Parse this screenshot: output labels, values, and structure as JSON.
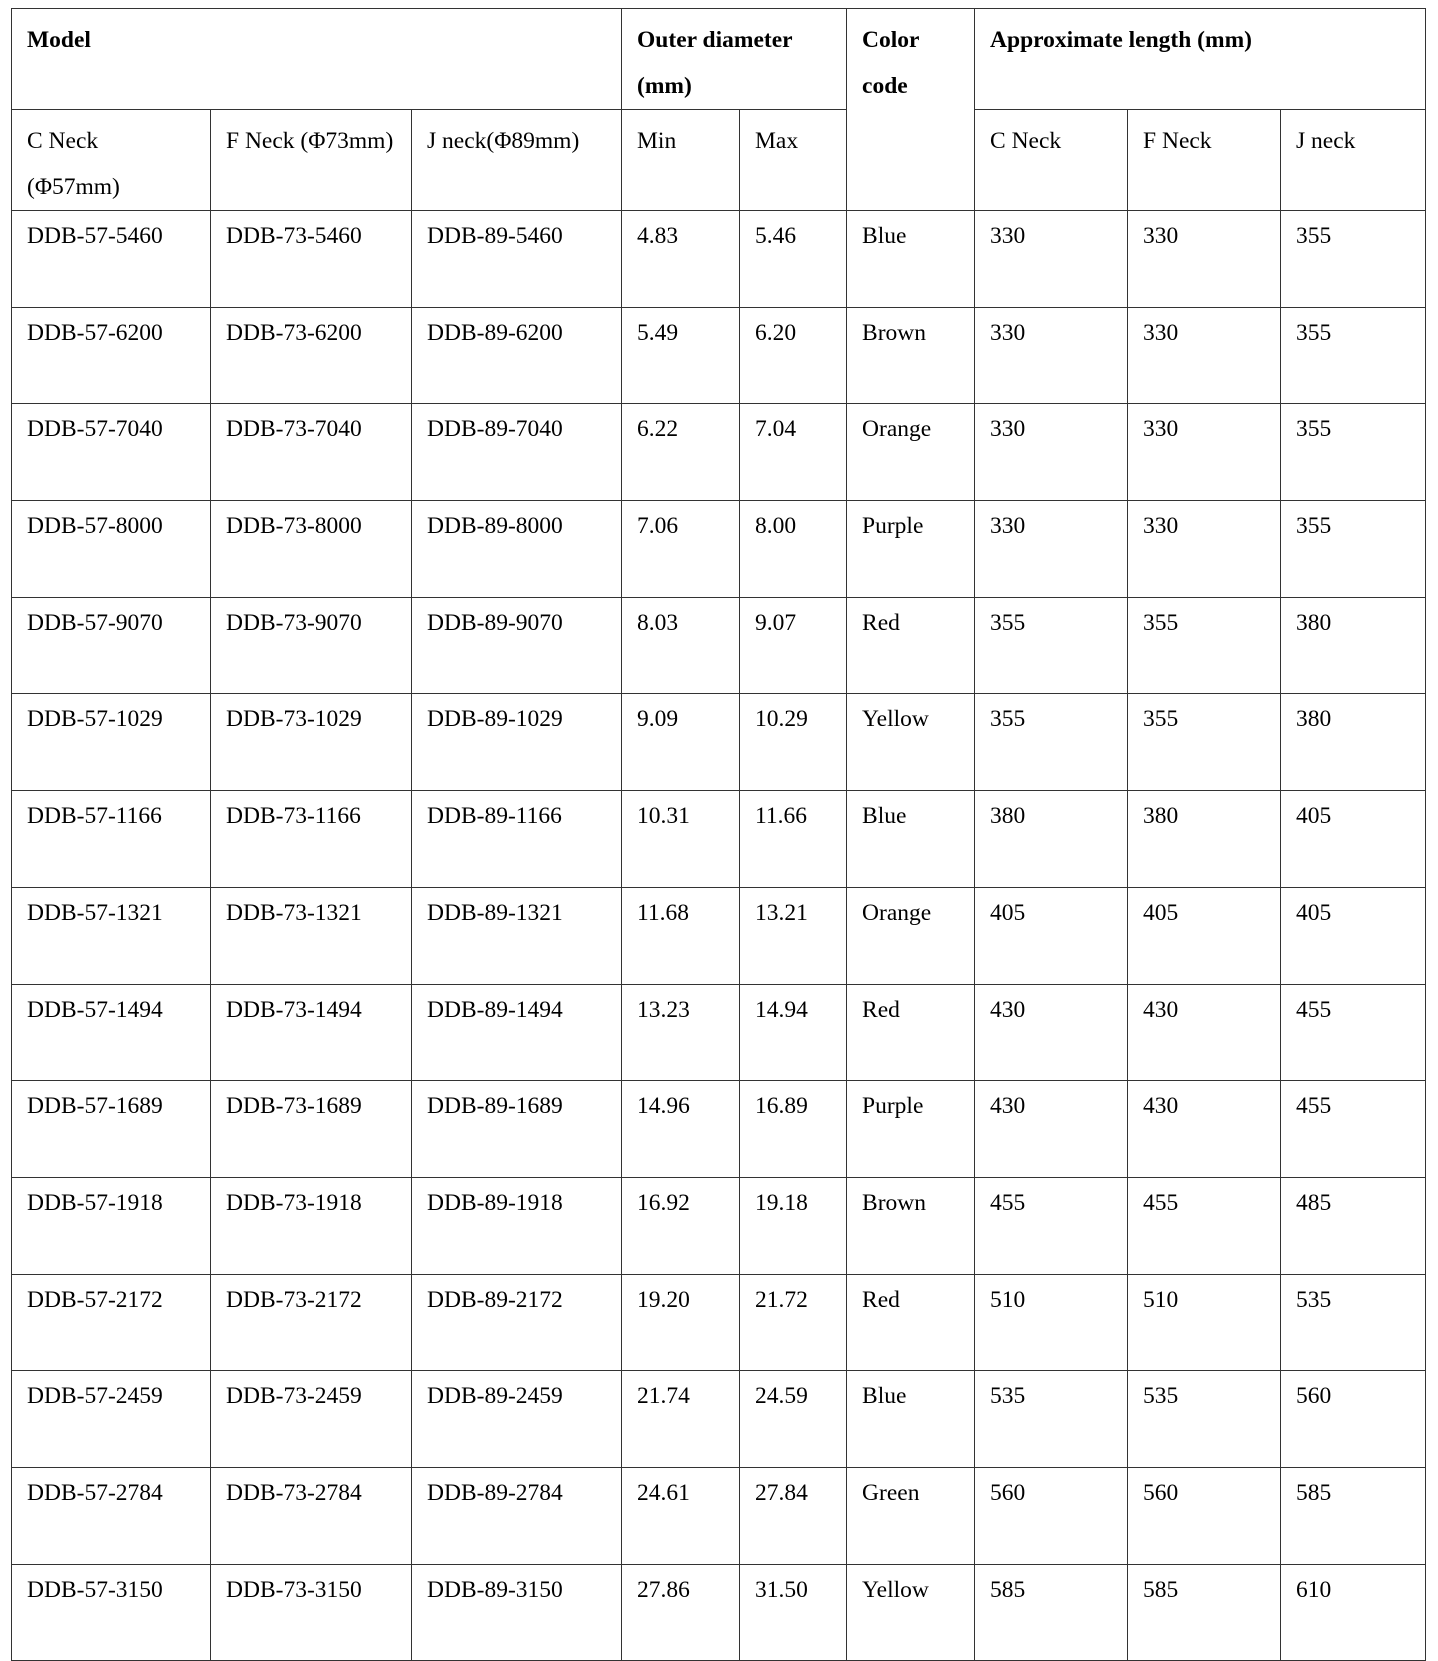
{
  "header": {
    "model": "Model",
    "outer_diameter": "Outer diameter (mm)",
    "color_code": "Color code",
    "approx_length": "Approximate length (mm)",
    "sub": {
      "c_neck": "C Neck (Φ57mm)",
      "f_neck": "F Neck (Φ73mm)",
      "j_neck": "J neck(Φ89mm)",
      "min": "Min",
      "max": "Max",
      "len_c": "C Neck",
      "len_f": "F Neck",
      "len_j": "J neck"
    }
  },
  "rows": [
    [
      "DDB-57-5460",
      "DDB-73-5460",
      "DDB-89-5460",
      "4.83",
      "5.46",
      "Blue",
      "330",
      "330",
      "355"
    ],
    [
      "DDB-57-6200",
      "DDB-73-6200",
      "DDB-89-6200",
      "5.49",
      "6.20",
      "Brown",
      "330",
      "330",
      "355"
    ],
    [
      "DDB-57-7040",
      "DDB-73-7040",
      "DDB-89-7040",
      "6.22",
      "7.04",
      "Orange",
      "330",
      "330",
      "355"
    ],
    [
      "DDB-57-8000",
      "DDB-73-8000",
      "DDB-89-8000",
      "7.06",
      "8.00",
      "Purple",
      "330",
      "330",
      "355"
    ],
    [
      "DDB-57-9070",
      "DDB-73-9070",
      "DDB-89-9070",
      "8.03",
      "9.07",
      "Red",
      "355",
      "355",
      "380"
    ],
    [
      "DDB-57-1029",
      "DDB-73-1029",
      "DDB-89-1029",
      "9.09",
      "10.29",
      "Yellow",
      "355",
      "355",
      "380"
    ],
    [
      "DDB-57-1166",
      "DDB-73-1166",
      "DDB-89-1166",
      "10.31",
      "11.66",
      "Blue",
      "380",
      "380",
      "405"
    ],
    [
      "DDB-57-1321",
      "DDB-73-1321",
      "DDB-89-1321",
      "11.68",
      "13.21",
      "Orange",
      "405",
      "405",
      "405"
    ],
    [
      "DDB-57-1494",
      "DDB-73-1494",
      "DDB-89-1494",
      "13.23",
      "14.94",
      "Red",
      "430",
      "430",
      "455"
    ],
    [
      "DDB-57-1689",
      "DDB-73-1689",
      "DDB-89-1689",
      "14.96",
      "16.89",
      "Purple",
      "430",
      "430",
      "455"
    ],
    [
      "DDB-57-1918",
      "DDB-73-1918",
      "DDB-89-1918",
      "16.92",
      "19.18",
      "Brown",
      "455",
      "455",
      "485"
    ],
    [
      "DDB-57-2172",
      "DDB-73-2172",
      "DDB-89-2172",
      "19.20",
      "21.72",
      "Red",
      "510",
      "510",
      "535"
    ],
    [
      "DDB-57-2459",
      "DDB-73-2459",
      "DDB-89-2459",
      "21.74",
      "24.59",
      "Blue",
      "535",
      "535",
      "560"
    ],
    [
      "DDB-57-2784",
      "DDB-73-2784",
      "DDB-89-2784",
      "24.61",
      "27.84",
      "Green",
      "560",
      "560",
      "585"
    ],
    [
      "DDB-57-3150",
      "DDB-73-3150",
      "DDB-89-3150",
      "27.86",
      "31.50",
      "Yellow",
      "585",
      "585",
      "610"
    ]
  ]
}
